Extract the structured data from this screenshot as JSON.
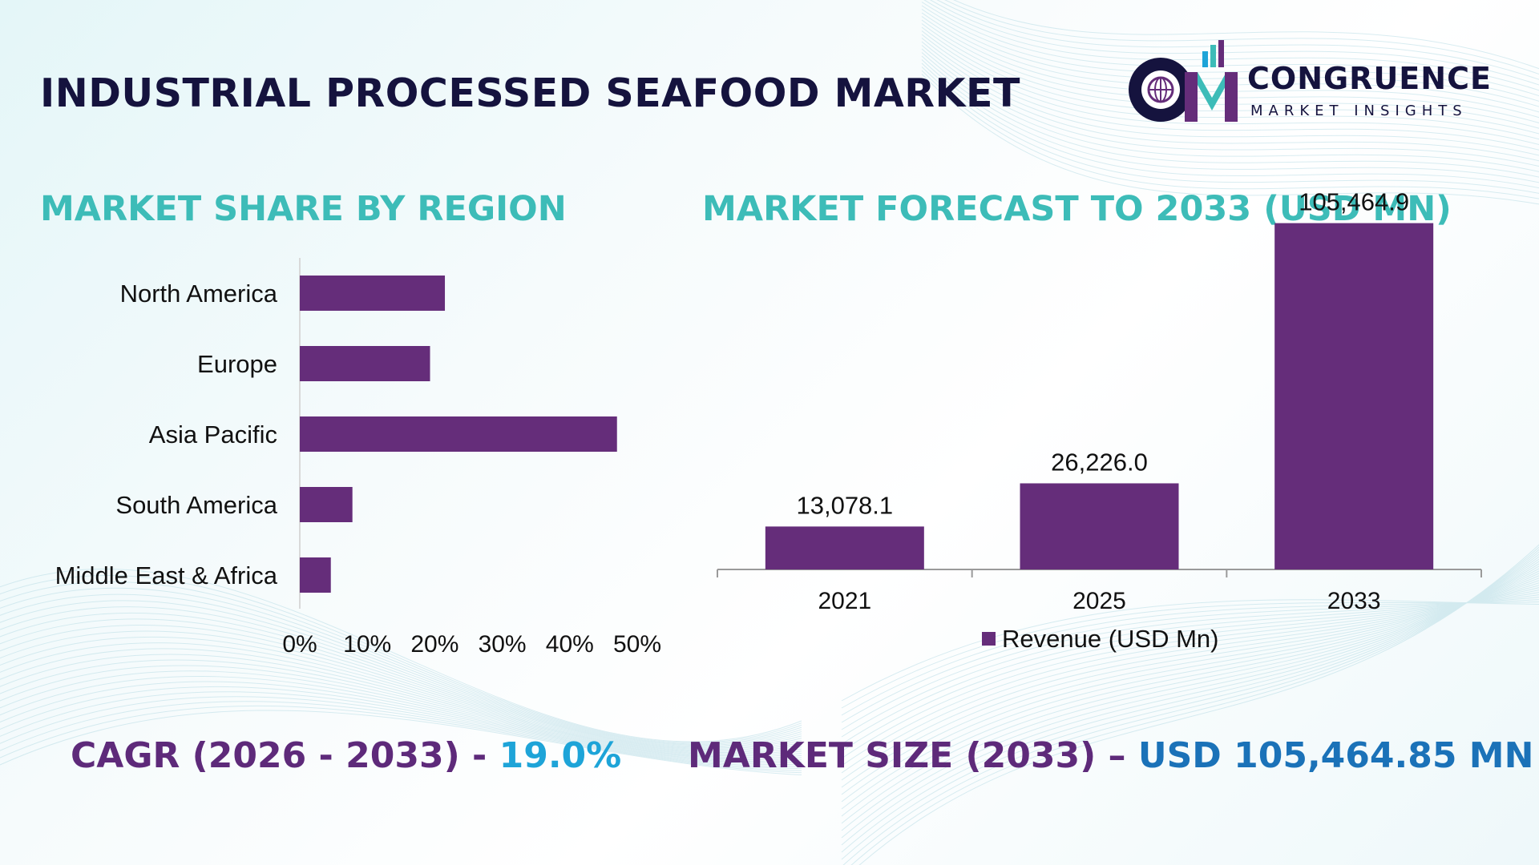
{
  "header": {
    "title": "INDUSTRIAL PROCESSED SEAFOOD MARKET"
  },
  "logo": {
    "name": "CONGRUENCE",
    "tagline": "MARKET INSIGHTS",
    "monogram": "CM"
  },
  "colors": {
    "bar": "#652d7a",
    "section_title": "#3dbcb8",
    "title": "#15133e",
    "stat_label": "#5e2a7a",
    "stat_value_blue": "#1b72b8",
    "stat_value_cyan": "#1ea4d8"
  },
  "sections": {
    "left_title": "MARKET SHARE BY REGION",
    "right_title": "MARKET FORECAST TO 2033 (USD MN)"
  },
  "chart_data": [
    {
      "type": "bar",
      "orientation": "horizontal",
      "title": "MARKET SHARE BY REGION",
      "categories": [
        "North America",
        "Europe",
        "Asia Pacific",
        "South America",
        "Middle East & Africa"
      ],
      "values": [
        21.5,
        19.3,
        47.0,
        7.8,
        4.6
      ],
      "unit": "%",
      "xlim": [
        0,
        50
      ],
      "ticks": [
        "0%",
        "10%",
        "20%",
        "30%",
        "40%",
        "50%"
      ],
      "grid": false,
      "legend": false
    },
    {
      "type": "bar",
      "orientation": "vertical",
      "title": "MARKET FORECAST TO 2033 (USD MN)",
      "categories": [
        "2021",
        "2025",
        "2033"
      ],
      "series": [
        {
          "name": "Revenue (USD Mn)",
          "values": [
            13078.1,
            26226.0,
            105464.9
          ]
        }
      ],
      "data_labels": [
        "13,078.1",
        "26,226.0",
        "105,464.9"
      ],
      "ylim": [
        0,
        110000
      ],
      "grid": false,
      "legend": "bottom-center"
    }
  ],
  "stats": {
    "cagr_label": "CAGR (2026 - 2033) - ",
    "cagr_value": "19.0%",
    "size_label": "MARKET SIZE (2033) – ",
    "size_value": "USD 105,464.85 MN"
  }
}
